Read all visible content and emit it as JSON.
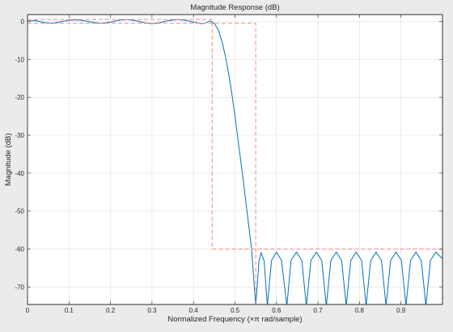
{
  "window": {
    "background": "#ebebeb"
  },
  "chart_data": {
    "type": "line",
    "title": "Magnitude Response (dB)",
    "xlabel": "Normalized Frequency (×π rad/sample)",
    "ylabel": "Magnitude (dB)",
    "xlim": [
      0,
      1
    ],
    "ylim": [
      -74.6,
      1.8
    ],
    "x_ticks": [
      0,
      0.1,
      0.2,
      0.3,
      0.4,
      0.5,
      0.6,
      0.7,
      0.8,
      0.9
    ],
    "x_tick_labels": [
      "0",
      "0.1",
      "0.2",
      "0.3",
      "0.4",
      "0.5",
      "0.6",
      "0.7",
      "0.8",
      "0.9"
    ],
    "y_ticks": [
      0,
      -10,
      -20,
      -30,
      -40,
      -50,
      -60,
      -70
    ],
    "y_tick_labels": [
      "0",
      "-10",
      "-20",
      "-30",
      "-40",
      "-50",
      "-60",
      "-70"
    ],
    "grid": true,
    "series": [
      {
        "color": "#0072bd",
        "style": "solid",
        "points": [
          [
            0,
            0.1
          ],
          [
            0.02,
            0.2
          ],
          [
            0.04,
            -0.3
          ],
          [
            0.06,
            -0.5
          ],
          [
            0.08,
            -0.1
          ],
          [
            0.1,
            0.3
          ],
          [
            0.12,
            0.4
          ],
          [
            0.14,
            0.1
          ],
          [
            0.16,
            -0.3
          ],
          [
            0.18,
            -0.5
          ],
          [
            0.2,
            -0.2
          ],
          [
            0.22,
            0.3
          ],
          [
            0.24,
            0.5
          ],
          [
            0.26,
            0.2
          ],
          [
            0.28,
            -0.3
          ],
          [
            0.3,
            -0.6
          ],
          [
            0.32,
            -0.3
          ],
          [
            0.34,
            0.2
          ],
          [
            0.36,
            0.5
          ],
          [
            0.38,
            0.3
          ],
          [
            0.4,
            -0.2
          ],
          [
            0.42,
            -0.6
          ],
          [
            0.43,
            -0.4
          ],
          [
            0.44,
            0.1
          ],
          [
            0.45,
            -0.5
          ],
          [
            0.46,
            -2.3
          ],
          [
            0.47,
            -5.8
          ],
          [
            0.48,
            -10.8
          ],
          [
            0.49,
            -17.2
          ],
          [
            0.5,
            -25
          ],
          [
            0.51,
            -33.5
          ],
          [
            0.52,
            -42
          ],
          [
            0.53,
            -51
          ],
          [
            0.54,
            -60
          ],
          [
            0.55,
            -75
          ],
          [
            0.558,
            -63
          ],
          [
            0.563,
            -61
          ],
          [
            0.57,
            -63
          ],
          [
            0.578,
            -75
          ],
          [
            0.588,
            -63
          ],
          [
            0.6,
            -60.8
          ],
          [
            0.612,
            -63
          ],
          [
            0.625,
            -75
          ],
          [
            0.635,
            -63
          ],
          [
            0.648,
            -60.8
          ],
          [
            0.661,
            -63
          ],
          [
            0.672,
            -75
          ],
          [
            0.683,
            -63
          ],
          [
            0.696,
            -60.8
          ],
          [
            0.709,
            -63
          ],
          [
            0.72,
            -75
          ],
          [
            0.731,
            -63
          ],
          [
            0.744,
            -60.8
          ],
          [
            0.757,
            -63
          ],
          [
            0.768,
            -75
          ],
          [
            0.779,
            -63
          ],
          [
            0.792,
            -60.8
          ],
          [
            0.805,
            -63
          ],
          [
            0.816,
            -75
          ],
          [
            0.827,
            -63
          ],
          [
            0.84,
            -60.8
          ],
          [
            0.853,
            -63
          ],
          [
            0.864,
            -75
          ],
          [
            0.875,
            -63
          ],
          [
            0.888,
            -60.8
          ],
          [
            0.901,
            -63
          ],
          [
            0.912,
            -75
          ],
          [
            0.923,
            -63
          ],
          [
            0.936,
            -60.8
          ],
          [
            0.949,
            -63
          ],
          [
            0.96,
            -75
          ],
          [
            0.971,
            -63
          ],
          [
            0.984,
            -60.8
          ],
          [
            0.995,
            -62
          ],
          [
            1,
            -62.5
          ]
        ]
      },
      {
        "color": "#ff8080",
        "style": "dashed",
        "points": [
          [
            0,
            0.5
          ],
          [
            0.445,
            0.5
          ],
          [
            0.445,
            -60
          ],
          [
            1,
            -60
          ]
        ]
      },
      {
        "color": "#ff8080",
        "style": "dashed",
        "points": [
          [
            0,
            -0.5
          ],
          [
            0.55,
            -0.5
          ],
          [
            0.55,
            -74.6
          ]
        ]
      }
    ]
  }
}
